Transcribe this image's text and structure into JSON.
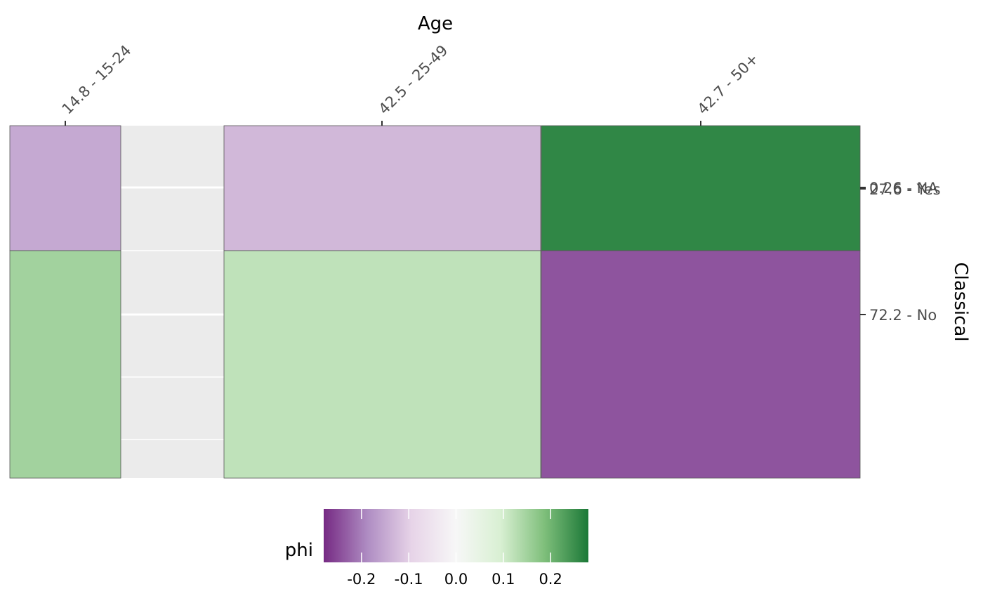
{
  "chart_data": {
    "type": "heatmap",
    "title": "",
    "xlabel": "Age",
    "ylabel": "Classical",
    "x_categories": [
      "14.8 - 15-24",
      "42.5 - 25-49",
      "42.7 - 50+"
    ],
    "y_categories": [
      "0.26 - NA",
      "27.6 - Yes",
      "72.2 - No"
    ],
    "cells": [
      {
        "x": "14.8 - 15-24",
        "y": "27.6 - Yes",
        "phi": -0.15
      },
      {
        "x": "14.8 - 15-24",
        "y": "72.2 - No",
        "phi": 0.15
      },
      {
        "x": "42.5 - 25-49",
        "y": "27.6 - Yes",
        "phi": -0.13
      },
      {
        "x": "42.5 - 25-49",
        "y": "72.2 - No",
        "phi": 0.12
      },
      {
        "x": "42.7 - 50+",
        "y": "27.6 - Yes",
        "phi": 0.26
      },
      {
        "x": "42.7 - 50+",
        "y": "72.2 - No",
        "phi": -0.24
      }
    ],
    "legend": {
      "title": "phi",
      "position": "bottom",
      "ticks": [
        -0.2,
        -0.1,
        0.0,
        0.1,
        0.2
      ],
      "tick_labels": [
        "-0.2",
        "-0.1",
        "0.0",
        "0.1",
        "0.2"
      ],
      "range": [
        -0.28,
        0.28
      ],
      "colors": [
        "#762a83",
        "#af8dc3",
        "#e7d4e8",
        "#f7f7f7",
        "#d9f0d3",
        "#7fbf7b",
        "#1b7837"
      ]
    },
    "panel_background": "#ebebeb",
    "grid": true
  }
}
